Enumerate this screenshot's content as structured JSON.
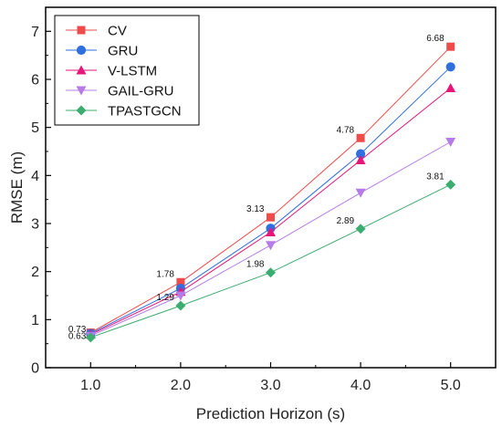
{
  "chart_data": {
    "type": "line",
    "xlabel": "Prediction Horizon (s)",
    "ylabel": "RMSE (m)",
    "x": [
      1.0,
      2.0,
      3.0,
      4.0,
      5.0
    ],
    "x_tick_labels": [
      "1.0",
      "2.0",
      "3.0",
      "4.0",
      "5.0"
    ],
    "xlim": [
      0.5,
      5.5
    ],
    "ylim": [
      0,
      7.5
    ],
    "y_ticks": [
      0,
      1,
      2,
      3,
      4,
      5,
      6,
      7
    ],
    "grid": false,
    "legend_position": "top-left",
    "series": [
      {
        "name": "CV",
        "values": [
          0.73,
          1.78,
          3.13,
          4.78,
          6.68
        ],
        "color": "#ef4b4b",
        "marker": "square"
      },
      {
        "name": "GRU",
        "values": [
          0.71,
          1.65,
          2.9,
          4.45,
          6.26
        ],
        "color": "#2f6fe0",
        "marker": "circle"
      },
      {
        "name": "V-LSTM",
        "values": [
          0.69,
          1.58,
          2.82,
          4.32,
          5.82
        ],
        "color": "#e8157a",
        "marker": "triangle-up"
      },
      {
        "name": "GAIL-GRU",
        "values": [
          0.66,
          1.5,
          2.55,
          3.64,
          4.7
        ],
        "color": "#b57ce8",
        "marker": "triangle-down"
      },
      {
        "name": "TPASTGCN",
        "values": [
          0.63,
          1.29,
          1.98,
          2.89,
          3.81
        ],
        "color": "#3cad70",
        "marker": "diamond"
      }
    ],
    "annotations": [
      {
        "x": 1.0,
        "y": 0.73,
        "text": "0.73"
      },
      {
        "x": 1.0,
        "y": 0.63,
        "text": "0.63"
      },
      {
        "x": 2.0,
        "y": 1.78,
        "text": "1.78"
      },
      {
        "x": 2.0,
        "y": 1.29,
        "text": "1.29"
      },
      {
        "x": 3.0,
        "y": 3.13,
        "text": "3.13"
      },
      {
        "x": 3.0,
        "y": 1.98,
        "text": "1.98"
      },
      {
        "x": 4.0,
        "y": 4.78,
        "text": "4.78"
      },
      {
        "x": 4.0,
        "y": 2.89,
        "text": "2.89"
      },
      {
        "x": 5.0,
        "y": 6.68,
        "text": "6.68"
      },
      {
        "x": 5.0,
        "y": 3.81,
        "text": "3.81"
      }
    ]
  }
}
